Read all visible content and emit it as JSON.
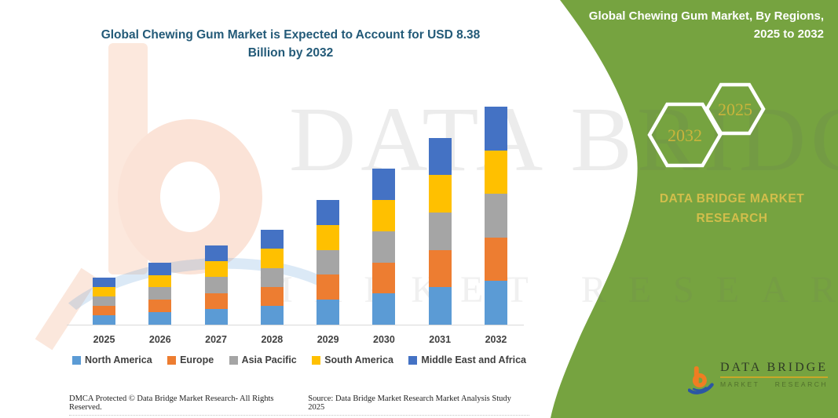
{
  "title": "Global Chewing Gum Market is Expected to Account for USD 8.38 Billion by 2032",
  "side_panel": {
    "heading": "Global Chewing Gum Market, By Regions, 2025 to 2032",
    "hexagon_large_label": "2032",
    "hexagon_small_label": "2025",
    "brand": "DATA BRIDGE MARKET RESEARCH",
    "panel_color": "#76a340",
    "gold_color": "#c9b43c"
  },
  "chart_data": {
    "type": "bar",
    "stacked": true,
    "unit": "USD Billion",
    "categories": [
      "2025",
      "2026",
      "2027",
      "2028",
      "2029",
      "2030",
      "2031",
      "2032"
    ],
    "series": [
      {
        "name": "North America",
        "color": "#5B9BD5",
        "values": [
          0.36,
          0.48,
          0.61,
          0.73,
          0.96,
          1.2,
          1.44,
          1.68
        ]
      },
      {
        "name": "Europe",
        "color": "#ED7D31",
        "values": [
          0.36,
          0.48,
          0.61,
          0.73,
          0.96,
          1.2,
          1.44,
          1.68
        ]
      },
      {
        "name": "Asia Pacific",
        "color": "#A5A5A5",
        "values": [
          0.36,
          0.48,
          0.61,
          0.73,
          0.96,
          1.2,
          1.44,
          1.68
        ]
      },
      {
        "name": "South America",
        "color": "#FFC000",
        "values": [
          0.36,
          0.48,
          0.61,
          0.73,
          0.96,
          1.2,
          1.44,
          1.68
        ]
      },
      {
        "name": "Middle East and Africa",
        "color": "#4472C4",
        "values": [
          0.36,
          0.48,
          0.61,
          0.73,
          0.96,
          1.2,
          1.44,
          1.68
        ]
      }
    ],
    "totals_estimated": [
      1.8,
      2.4,
      3.05,
      3.65,
      4.8,
      6.0,
      7.2,
      8.4
    ],
    "ylim": [
      0,
      8.6
    ],
    "grid": false,
    "legend_position": "bottom",
    "title": "Global Chewing Gum Market is Expected to Account for USD 8.38 Billion by 2032",
    "xlabel": "",
    "ylabel": ""
  },
  "footer": {
    "left": "DMCA Protected © Data Bridge Market Research-  All Rights Reserved.",
    "right": "Source: Data Bridge Market Research  Market Analysis Study 2025"
  },
  "logo": {
    "name": "DATA BRIDGE",
    "sub_word1": "MARKET",
    "sub_word2": "RESEARCH"
  },
  "watermark": {
    "line1": "DATA BRIDGE",
    "line2": "MARKET RESEARCH"
  }
}
